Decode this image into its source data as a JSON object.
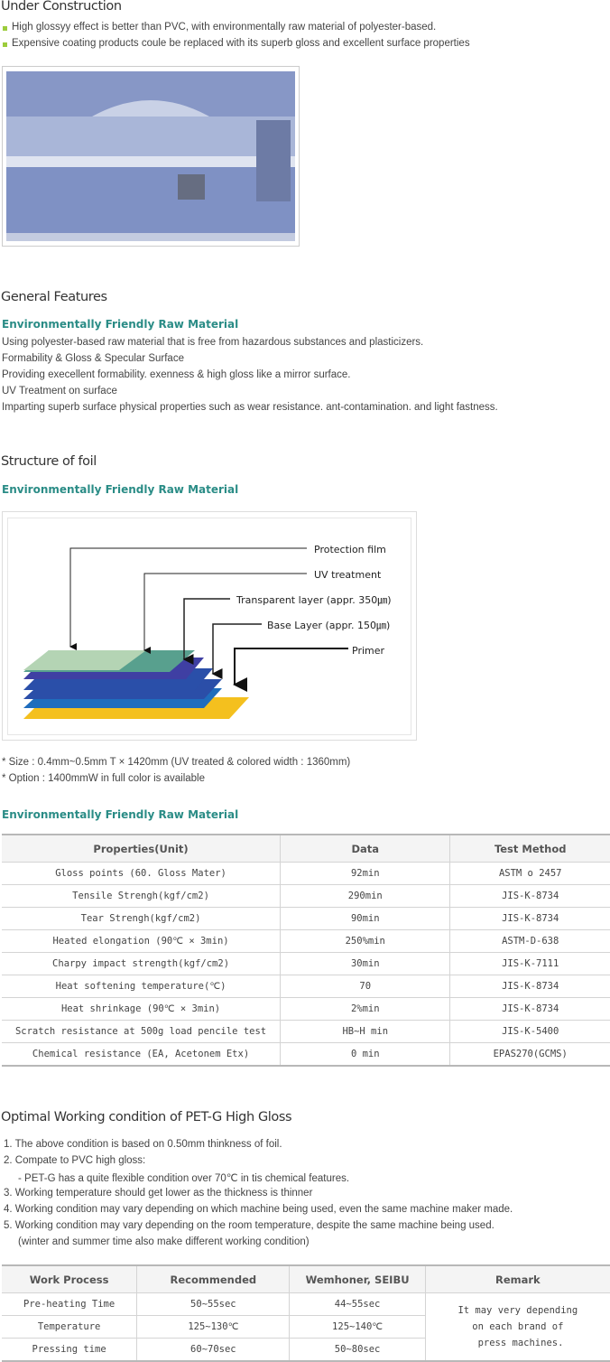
{
  "intro": {
    "title": "Under Construction",
    "bullets": [
      "High glossyy effect is better than PVC, with environmentally raw material of polyester-based.",
      "Expensive coating products coule be replaced with its superb gloss and excellent surface properties"
    ]
  },
  "features": {
    "title": "General Features",
    "subtitle": "Environmentally Friendly Raw Material",
    "lines": [
      "Using polyester-based raw material that is free from hazardous substances and plasticizers.",
      "Formability & Gloss & Specular Surface",
      "Providing execellent formability. exenness & high gloss like a mirror surface.",
      "UV Treatment on surface",
      "Imparting superb surface physical properties such as wear resistance. ant-contamination. and light fastness."
    ]
  },
  "structure": {
    "title": "Structure of foil",
    "subtitle": "Environmentally Friendly Raw Material",
    "diagram_labels": [
      "Protection film",
      "UV treatment",
      "Transparent layer (appr. 350㎛)",
      "Base Layer (appr. 150㎛)",
      "Primer"
    ],
    "notes": [
      "* Size : 0.4mm~0.5mm T × 1420mm (UV treated & colored width : 1360mm)",
      "* Option : 1400mmW in full color is available"
    ]
  },
  "properties": {
    "subtitle": "Environmentally Friendly Raw Material",
    "table": {
      "header": [
        "Properties(Unit)",
        "Data",
        "Test Method"
      ],
      "rows": [
        [
          "Gloss points (60. Gloss Mater)",
          "92min",
          "ASTM o 2457"
        ],
        [
          "Tensile Strengh(kgf/cm2)",
          "290min",
          "JIS-K-8734"
        ],
        [
          "Tear Strengh(kgf/cm2)",
          "90min",
          "JIS-K-8734"
        ],
        [
          "Heated elongation (90℃ ×  3min)",
          "250%min",
          "ASTM-D-638"
        ],
        [
          "Charpy impact strength(kgf/cm2)",
          "30min",
          "JIS-K-7111"
        ],
        [
          "Heat softening temperature(℃)",
          "70",
          "JIS-K-8734"
        ],
        [
          "Heat shrinkage (90℃ ×  3min)",
          "2%min",
          "JIS-K-8734"
        ],
        [
          "Scratch resistance at 500g load pencile test",
          "HB~H min",
          "JIS-K-5400"
        ],
        [
          "Chemical resistance (EA, Acetonem Etx)",
          "0 min",
          "EPAS270(GCMS)"
        ]
      ]
    }
  },
  "working": {
    "title": "Optimal Working condition of PET-G High Gloss",
    "lines": [
      "1. The above condition is based on 0.50mm thinkness of foil.",
      "2. Compate to PVC high gloss:",
      "- PET-G has a quite flexible condition over 70℃ in tis chemical features.",
      "3. Working temperature should get lower as the thickness is thinner",
      "4. Working condition may vary depending on which machine being used, even the same machine maker made.",
      "5. Working condition may vary depending on the room temperature, despite the same machine being used.",
      "(winter and summer time also make different working condition)"
    ],
    "table": {
      "header": [
        "Work Process",
        "Recommended",
        "Wemhoner, SEIBU",
        "Remark"
      ],
      "rows": [
        [
          "Pre-heating Time",
          "50~55sec",
          "44~55sec"
        ],
        [
          "Temperature",
          "125~130℃",
          "125~140℃"
        ],
        [
          "Pressing time",
          "60~70sec",
          "50~80sec"
        ]
      ],
      "remark": "It may very depending\non each brand of\n press machines."
    }
  }
}
